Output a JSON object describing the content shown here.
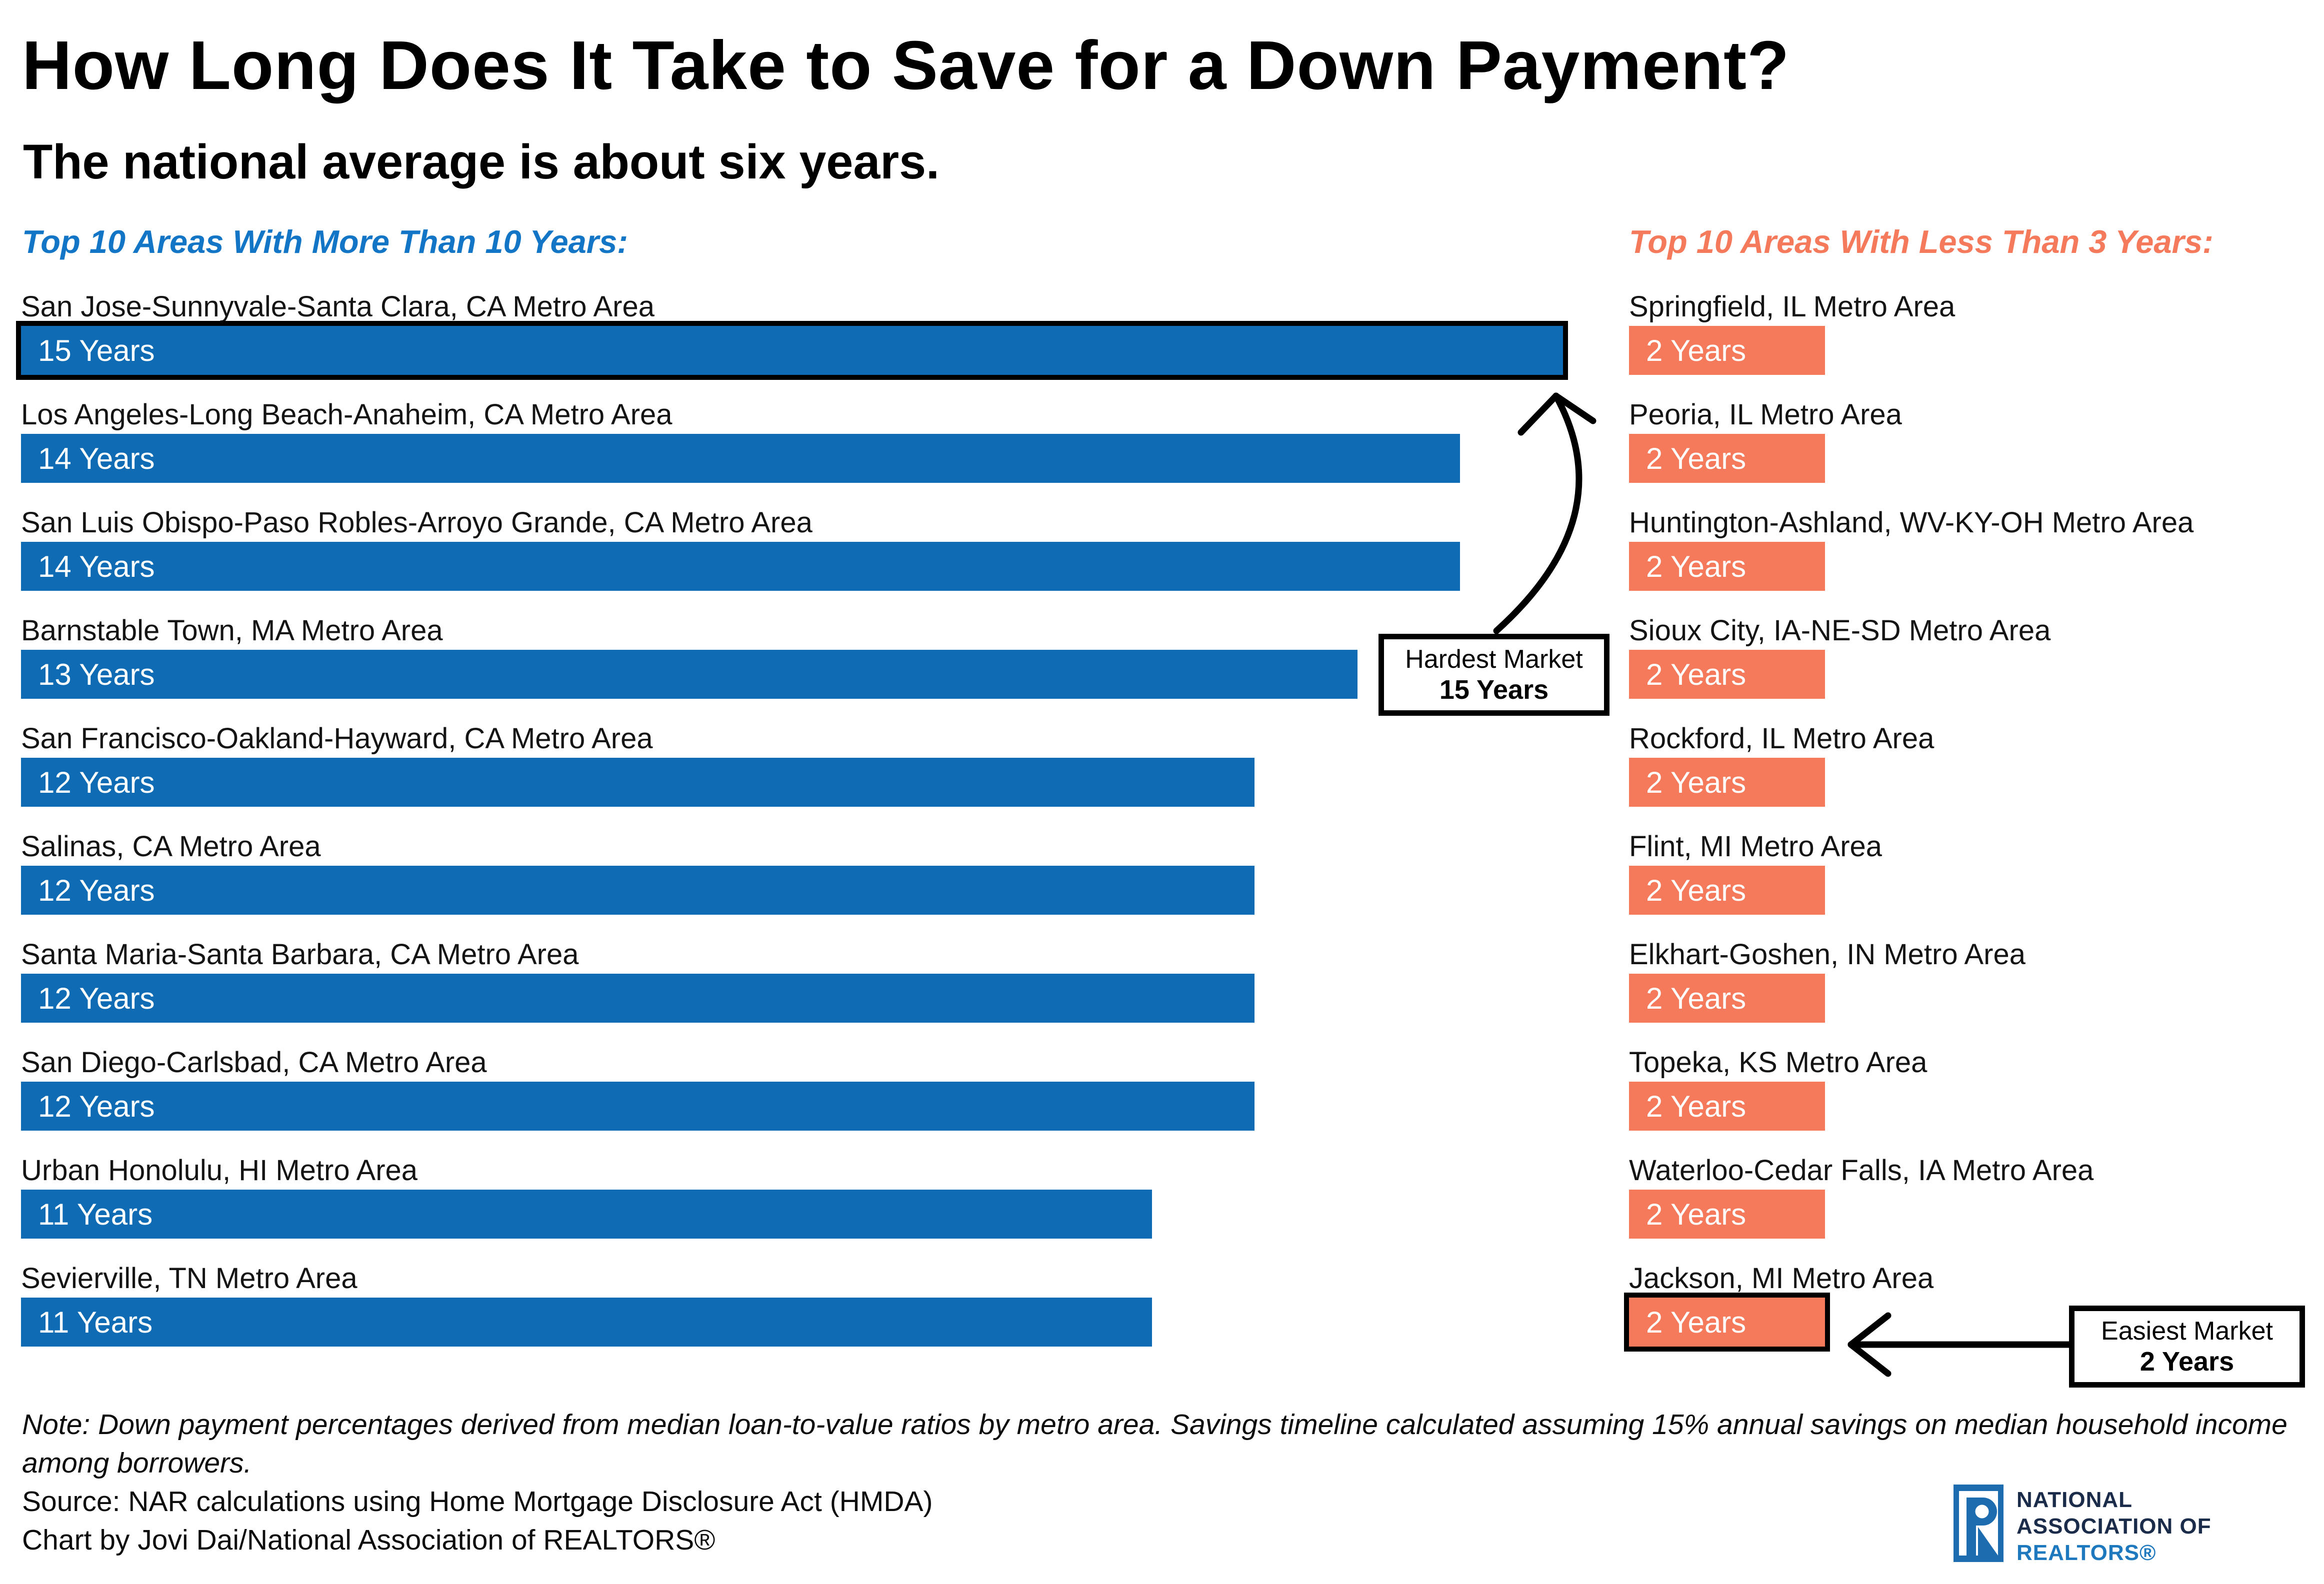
{
  "title": "How Long Does It Take to Save for a Down Payment?",
  "subtitle": "The national average is about six years.",
  "left_section": {
    "header": "Top 10 Areas With More Than 10 Years:",
    "items": [
      {
        "area": "San Jose-Sunnyvale-Santa Clara, CA Metro Area",
        "years": 15,
        "label": "15 Years",
        "highlight": true
      },
      {
        "area": "Los Angeles-Long Beach-Anaheim, CA Metro Area",
        "years": 14,
        "label": "14 Years",
        "highlight": false
      },
      {
        "area": "San Luis Obispo-Paso Robles-Arroyo Grande, CA Metro Area",
        "years": 14,
        "label": "14 Years",
        "highlight": false
      },
      {
        "area": "Barnstable Town, MA Metro Area",
        "years": 13,
        "label": "13 Years",
        "highlight": false
      },
      {
        "area": "San Francisco-Oakland-Hayward, CA Metro Area",
        "years": 12,
        "label": "12 Years",
        "highlight": false
      },
      {
        "area": "Salinas, CA Metro Area",
        "years": 12,
        "label": "12 Years",
        "highlight": false
      },
      {
        "area": "Santa Maria-Santa Barbara, CA Metro Area",
        "years": 12,
        "label": "12 Years",
        "highlight": false
      },
      {
        "area": "San Diego-Carlsbad, CA Metro Area",
        "years": 12,
        "label": "12 Years",
        "highlight": false
      },
      {
        "area": "Urban Honolulu, HI Metro Area",
        "years": 11,
        "label": "11 Years",
        "highlight": false
      },
      {
        "area": "Sevierville, TN Metro Area",
        "years": 11,
        "label": "11 Years",
        "highlight": false
      }
    ]
  },
  "right_section": {
    "header": "Top 10 Areas With Less Than 3 Years:",
    "items": [
      {
        "area": "Springfield, IL Metro Area",
        "years": 2,
        "label": "2 Years",
        "highlight": false
      },
      {
        "area": "Peoria, IL Metro Area",
        "years": 2,
        "label": "2 Years",
        "highlight": false
      },
      {
        "area": "Huntington-Ashland, WV-KY-OH Metro Area",
        "years": 2,
        "label": "2 Years",
        "highlight": false
      },
      {
        "area": "Sioux City, IA-NE-SD Metro Area",
        "years": 2,
        "label": "2 Years",
        "highlight": false
      },
      {
        "area": "Rockford, IL Metro Area",
        "years": 2,
        "label": "2 Years",
        "highlight": false
      },
      {
        "area": "Flint, MI Metro Area",
        "years": 2,
        "label": "2 Years",
        "highlight": false
      },
      {
        "area": "Elkhart-Goshen, IN Metro Area",
        "years": 2,
        "label": "2 Years",
        "highlight": false
      },
      {
        "area": "Topeka, KS Metro Area",
        "years": 2,
        "label": "2 Years",
        "highlight": false
      },
      {
        "area": "Waterloo-Cedar Falls, IA Metro Area",
        "years": 2,
        "label": "2 Years",
        "highlight": false
      },
      {
        "area": "Jackson, MI Metro Area",
        "years": 2,
        "label": "2 Years",
        "highlight": true
      }
    ]
  },
  "callouts": {
    "hardest": {
      "line1": "Hardest Market",
      "line2": "15 Years"
    },
    "easiest": {
      "line1": "Easiest Market",
      "line2": "2 Years"
    }
  },
  "footnotes": {
    "note": "Note: Down payment percentages derived from median loan-to-value ratios by metro area. Savings timeline calculated assuming 15% annual savings on median household income among borrowers.",
    "source": "Source: NAR calculations using Home Mortgage Disclosure Act (HMDA)",
    "credit": "Chart by Jovi Dai/National Association of REALTORS®"
  },
  "logo": {
    "line1": "NATIONAL",
    "line2": "ASSOCIATION OF",
    "line3": "REALTORS®"
  },
  "colors": {
    "bar_blue": "#0F6CB4",
    "header_blue": "#1375C5",
    "orange": "#F5795B",
    "logo_navy": "#1B2B4A",
    "logo_blue": "#1E78BE",
    "highlight_border": "#000000"
  },
  "chart_data": {
    "type": "bar",
    "orientation": "horizontal",
    "title": "How Long Does It Take to Save for a Down Payment?",
    "subtitle": "The national average is about six years.",
    "unit": "Years",
    "xlim": [
      0,
      15
    ],
    "grid": false,
    "series": [
      {
        "name": "Top 10 Areas With More Than 10 Years",
        "color": "#0F6CB4",
        "categories": [
          "San Jose-Sunnyvale-Santa Clara, CA Metro Area",
          "Los Angeles-Long Beach-Anaheim, CA Metro Area",
          "San Luis Obispo-Paso Robles-Arroyo Grande, CA Metro Area",
          "Barnstable Town, MA Metro Area",
          "San Francisco-Oakland-Hayward, CA Metro Area",
          "Salinas, CA Metro Area",
          "Santa Maria-Santa Barbara, CA Metro Area",
          "San Diego-Carlsbad, CA Metro Area",
          "Urban Honolulu, HI Metro Area",
          "Sevierville, TN Metro Area"
        ],
        "values": [
          15,
          14,
          14,
          13,
          12,
          12,
          12,
          12,
          11,
          11
        ]
      },
      {
        "name": "Top 10 Areas With Less Than 3 Years",
        "color": "#F5795B",
        "categories": [
          "Springfield, IL Metro Area",
          "Peoria, IL Metro Area",
          "Huntington-Ashland, WV-KY-OH Metro Area",
          "Sioux City, IA-NE-SD Metro Area",
          "Rockford, IL Metro Area",
          "Flint, MI Metro Area",
          "Elkhart-Goshen, IN Metro Area",
          "Topeka, KS Metro Area",
          "Waterloo-Cedar Falls, IA Metro Area",
          "Jackson, MI Metro Area"
        ],
        "values": [
          2,
          2,
          2,
          2,
          2,
          2,
          2,
          2,
          2,
          2
        ]
      }
    ],
    "annotations": [
      {
        "text": "Hardest Market 15 Years",
        "target": "San Jose-Sunnyvale-Santa Clara, CA Metro Area"
      },
      {
        "text": "Easiest Market 2 Years",
        "target": "Jackson, MI Metro Area"
      }
    ]
  }
}
